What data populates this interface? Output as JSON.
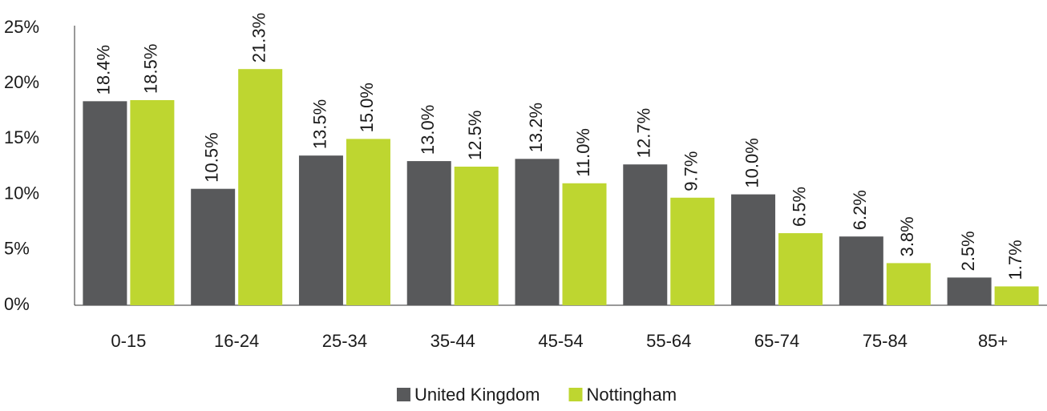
{
  "chart_data": {
    "type": "bar",
    "categories": [
      "0-15",
      "16-24",
      "25-34",
      "35-44",
      "45-54",
      "55-64",
      "65-74",
      "75-84",
      "85+"
    ],
    "series": [
      {
        "name": "United Kingdom",
        "color": "#58595b",
        "values": [
          18.4,
          10.5,
          13.5,
          13.0,
          13.2,
          12.7,
          10.0,
          6.2,
          2.5
        ],
        "value_labels": [
          "18.4%",
          "10.5%",
          "13.5%",
          "13.0%",
          "13.2%",
          "12.7%",
          "10.0%",
          "6.2%",
          "2.5%"
        ]
      },
      {
        "name": "Nottingham",
        "color": "#bed630",
        "values": [
          18.5,
          21.3,
          15.0,
          12.5,
          11.0,
          9.7,
          6.5,
          3.8,
          1.7
        ],
        "value_labels": [
          "18.5%",
          "21.3%",
          "15.0%",
          "12.5%",
          "11.0%",
          "9.7%",
          "6.5%",
          "3.8%",
          "1.7%"
        ]
      }
    ],
    "ylim": [
      0,
      25
    ],
    "yticks": [
      {
        "value": 0,
        "label": "0%"
      },
      {
        "value": 5,
        "label": "5%"
      },
      {
        "value": 10,
        "label": "10%"
      },
      {
        "value": 15,
        "label": "15%"
      },
      {
        "value": 20,
        "label": "20%"
      },
      {
        "value": 25,
        "label": "25%"
      }
    ],
    "legend": "bottom",
    "grid": false
  }
}
